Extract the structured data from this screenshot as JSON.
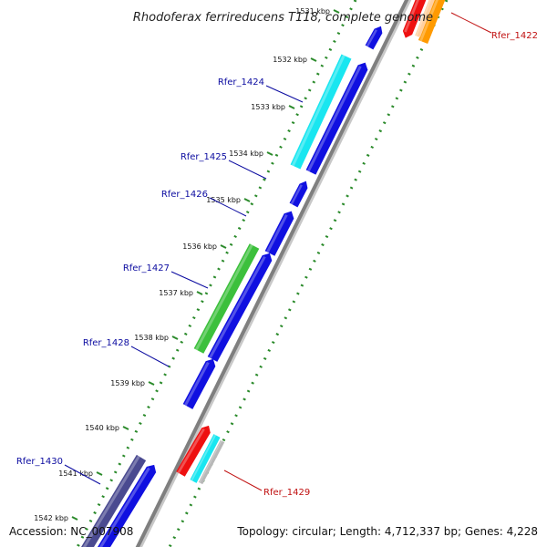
{
  "title": "Rhodoferax ferrireducens T118, complete genome",
  "accession": "Accession: NC_007908",
  "topology": "Topology: circular; Length: 4,712,337 bp; Genes: 4,228",
  "ticks": [
    {
      "label": "1531 kbp"
    },
    {
      "label": "1532 kbp"
    },
    {
      "label": "1533 kbp"
    },
    {
      "label": "1534 kbp"
    },
    {
      "label": "1535 kbp"
    },
    {
      "label": "1536 kbp"
    },
    {
      "label": "1537 kbp"
    },
    {
      "label": "1538 kbp"
    },
    {
      "label": "1539 kbp"
    },
    {
      "label": "1540 kbp"
    },
    {
      "label": "1541 kbp"
    },
    {
      "label": "1542 kbp"
    }
  ],
  "gene_labels": [
    {
      "name": "Rfer_1422",
      "color": "#c01010"
    },
    {
      "name": "Rfer_1424",
      "color": "#0b0ba0"
    },
    {
      "name": "Rfer_1425",
      "color": "#0b0ba0"
    },
    {
      "name": "Rfer_1426",
      "color": "#0b0ba0"
    },
    {
      "name": "Rfer_1427",
      "color": "#0b0ba0"
    },
    {
      "name": "Rfer_1428",
      "color": "#0b0ba0"
    },
    {
      "name": "Rfer_1429",
      "color": "#c01010"
    },
    {
      "name": "Rfer_1430",
      "color": "#0b0ba0"
    }
  ],
  "colors": {
    "blue": "#1010e0",
    "cyan": "#19e6f0",
    "green": "#3cc03c",
    "red": "#ee1010",
    "orange": "#ff9a00",
    "slate": "#4a4a90",
    "lightgreen": "#a0e040",
    "gray": "#b8b8b8",
    "backbone": "#8c8c8c",
    "dots_inner": "#2a8a2a",
    "dots_outer": "#2a8a2a"
  }
}
